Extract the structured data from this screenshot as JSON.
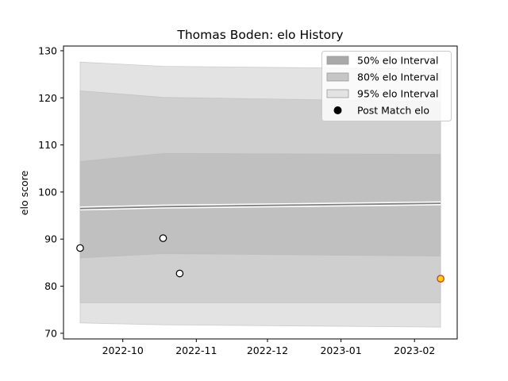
{
  "chart_data": {
    "type": "line",
    "title": "Thomas Boden: elo History",
    "xlabel": "",
    "ylabel": "elo score",
    "xlim": [
      "2022-09-06",
      "2023-02-19"
    ],
    "ylim": [
      68.8,
      131.0
    ],
    "yticks": [
      70,
      80,
      90,
      100,
      110,
      120,
      130
    ],
    "xticks": [
      {
        "date": "2022-10-01",
        "label": "2022-10"
      },
      {
        "date": "2022-11-01",
        "label": "2022-11"
      },
      {
        "date": "2022-12-01",
        "label": "2022-12"
      },
      {
        "date": "2023-01-01",
        "label": "2023-01"
      },
      {
        "date": "2023-02-01",
        "label": "2023-02"
      }
    ],
    "grid": false,
    "legend_position": "top-right",
    "legend": [
      {
        "label": "50% elo Interval",
        "kind": "band",
        "color": "#a9a9a9"
      },
      {
        "label": "80% elo Interval",
        "kind": "band",
        "color": "#c6c6c6"
      },
      {
        "label": "95% elo Interval",
        "kind": "band",
        "color": "#e3e3e3"
      },
      {
        "label": "Post Match elo",
        "kind": "marker",
        "color": "#000000"
      }
    ],
    "interval_dates": [
      "2022-09-13",
      "2022-10-18",
      "2023-02-12"
    ],
    "mean": [
      96.5,
      96.9,
      97.6
    ],
    "bands": [
      {
        "name": "95% elo Interval",
        "color": "#e3e3e3",
        "lower": [
          72.2,
          71.8,
          71.3
        ],
        "upper": [
          127.6,
          126.7,
          126.1
        ]
      },
      {
        "name": "80% elo Interval",
        "color": "#cfcfcf",
        "lower": [
          76.5,
          76.5,
          76.5
        ],
        "upper": [
          121.5,
          120.1,
          119.2
        ]
      },
      {
        "name": "50% elo Interval",
        "color": "#c0c0c0",
        "lower": [
          86.0,
          86.9,
          86.4
        ],
        "upper": [
          106.5,
          108.2,
          108.0
        ]
      }
    ],
    "points": [
      {
        "date": "2022-09-13",
        "y": 88.1,
        "fill": "#ffffff",
        "edge": "#000000"
      },
      {
        "date": "2022-10-18",
        "y": 90.2,
        "fill": "#ffffff",
        "edge": "#000000"
      },
      {
        "date": "2022-10-25",
        "y": 82.7,
        "fill": "#ffffff",
        "edge": "#000000"
      },
      {
        "date": "2023-02-12",
        "y": 81.6,
        "fill": "#ffd700",
        "edge": "#d62728"
      }
    ],
    "colors": {
      "mean_line": "#808080",
      "mean_halo": "#ffffff",
      "axes": "#000000"
    }
  }
}
